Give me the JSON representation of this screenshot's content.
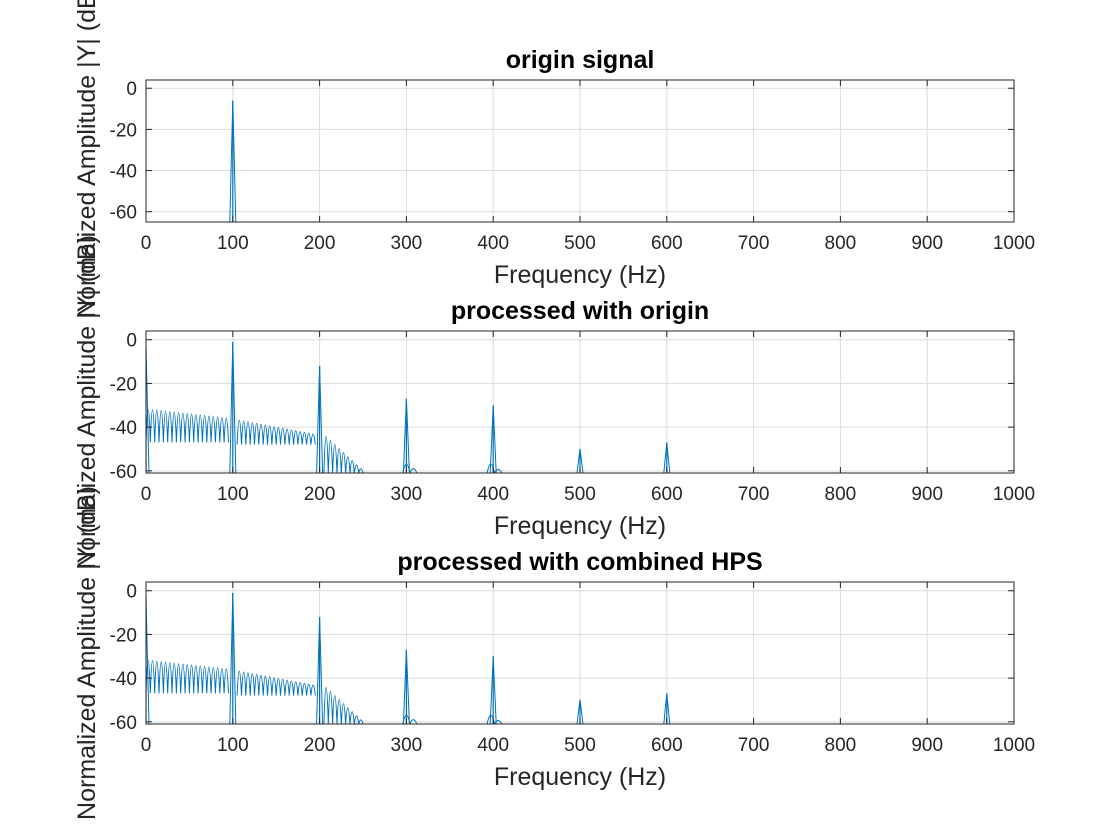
{
  "figure": {
    "background": "#ffffff",
    "line_color": "#0072bd",
    "grid": true
  },
  "chart_data": [
    {
      "type": "line",
      "title": "origin signal",
      "xlabel": "Frequency (Hz)",
      "ylabel": "Normalized Amplitude |Y| (dB)",
      "xlim": [
        0,
        1000
      ],
      "ylim": [
        -65,
        4
      ],
      "xticks": [
        0,
        100,
        200,
        300,
        400,
        500,
        600,
        700,
        800,
        900,
        1000
      ],
      "yticks": [
        0,
        -20,
        -40,
        -60
      ],
      "series": [
        {
          "peaks": [
            {
              "x": 100,
              "y": -6
            }
          ],
          "sidelobes": []
        }
      ]
    },
    {
      "type": "line",
      "title": "processed with origin",
      "xlabel": "Frequency (Hz)",
      "ylabel": "Normalized Amplitude |Y| (dB)",
      "xlim": [
        0,
        1000
      ],
      "ylim": [
        -61,
        4
      ],
      "xticks": [
        0,
        100,
        200,
        300,
        400,
        500,
        600,
        700,
        800,
        900,
        1000
      ],
      "yticks": [
        0,
        -20,
        -40,
        -60
      ],
      "series": [
        {
          "peaks": [
            {
              "x": 0,
              "y": -3
            },
            {
              "x": 100,
              "y": -1
            },
            {
              "x": 200,
              "y": -12
            },
            {
              "x": 300,
              "y": -27
            },
            {
              "x": 400,
              "y": -30
            },
            {
              "x": 500,
              "y": -50
            },
            {
              "x": 600,
              "y": -47
            }
          ],
          "sidelobes": [
            {
              "from": 0,
              "to": 95,
              "count": 19,
              "start_db": -28,
              "end_db": -33,
              "min_db": -47
            },
            {
              "from": 105,
              "to": 195,
              "count": 18,
              "start_db": -34,
              "end_db": -42,
              "min_db": -48
            },
            {
              "from": 205,
              "to": 255,
              "count": 10,
              "start_db": -40,
              "end_db": -61,
              "min_db": -61
            },
            {
              "from": 296,
              "to": 320,
              "count": 3,
              "start_db": -56,
              "end_db": -61,
              "min_db": -61
            },
            {
              "from": 393,
              "to": 410,
              "count": 2,
              "start_db": -56,
              "end_db": -59,
              "min_db": -61
            }
          ]
        }
      ]
    },
    {
      "type": "line",
      "title": "processed with combined HPS",
      "xlabel": "Frequency (Hz)",
      "ylabel": "Normalized Amplitude |Y| (dB)",
      "xlim": [
        0,
        1000
      ],
      "ylim": [
        -61,
        4
      ],
      "xticks": [
        0,
        100,
        200,
        300,
        400,
        500,
        600,
        700,
        800,
        900,
        1000
      ],
      "yticks": [
        0,
        -20,
        -40,
        -60
      ],
      "series": [
        {
          "peaks": [
            {
              "x": 0,
              "y": -3
            },
            {
              "x": 100,
              "y": -1
            },
            {
              "x": 200,
              "y": -12
            },
            {
              "x": 300,
              "y": -27
            },
            {
              "x": 400,
              "y": -30
            },
            {
              "x": 500,
              "y": -50
            },
            {
              "x": 600,
              "y": -47
            }
          ],
          "sidelobes": [
            {
              "from": 0,
              "to": 95,
              "count": 19,
              "start_db": -28,
              "end_db": -33,
              "min_db": -47
            },
            {
              "from": 105,
              "to": 195,
              "count": 18,
              "start_db": -34,
              "end_db": -42,
              "min_db": -48
            },
            {
              "from": 205,
              "to": 255,
              "count": 10,
              "start_db": -40,
              "end_db": -61,
              "min_db": -61
            },
            {
              "from": 296,
              "to": 320,
              "count": 3,
              "start_db": -56,
              "end_db": -61,
              "min_db": -61
            },
            {
              "from": 393,
              "to": 410,
              "count": 2,
              "start_db": -56,
              "end_db": -59,
              "min_db": -61
            }
          ]
        }
      ]
    }
  ]
}
